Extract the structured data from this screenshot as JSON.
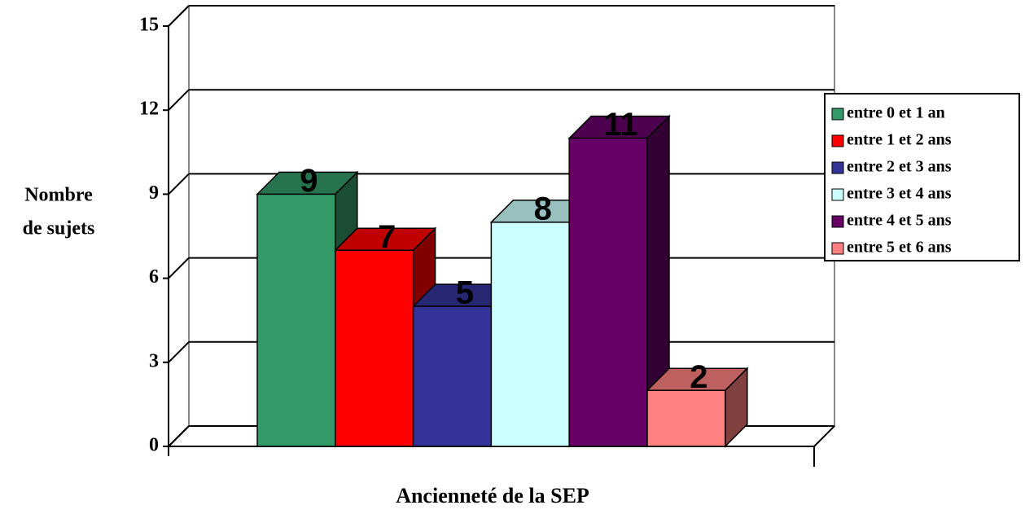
{
  "chart_data": {
    "type": "bar3d",
    "y_label_lines": [
      "Nombre",
      "de sujets"
    ],
    "x_label": "Ancienneté de la SEP",
    "ylim": [
      0,
      15
    ],
    "yticks": [
      0,
      3,
      6,
      9,
      12,
      15
    ],
    "grid": true,
    "legend": "right",
    "series": [
      {
        "name": "entre 0 et 1 an",
        "color": "#339966",
        "values": [
          9
        ]
      },
      {
        "name": "entre 1 et 2 ans",
        "color": "#ff0000",
        "values": [
          7
        ]
      },
      {
        "name": "entre 2 et 3 ans",
        "color": "#333399",
        "values": [
          5
        ]
      },
      {
        "name": "entre 3 et 4 ans",
        "color": "#ccffff",
        "values": [
          8
        ]
      },
      {
        "name": "entre 4 et 5 ans",
        "color": "#660066",
        "values": [
          11
        ]
      },
      {
        "name": "entre 5 et 6 ans",
        "color": "#ff8080",
        "values": [
          2
        ]
      }
    ]
  }
}
